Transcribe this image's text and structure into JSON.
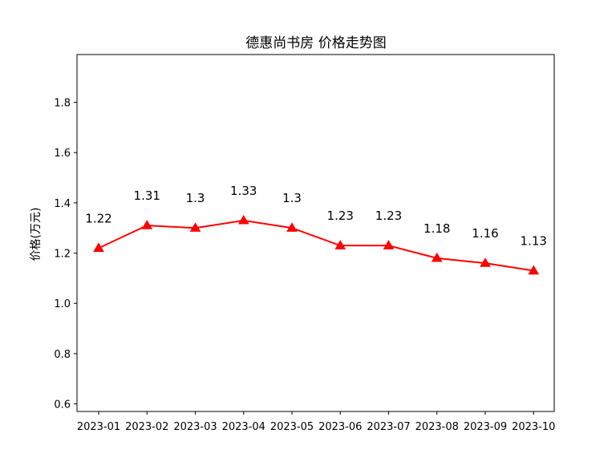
{
  "chart_data": {
    "type": "line",
    "title": "德惠尚书房 价格走势图",
    "xlabel": "",
    "ylabel": "价格(万元)",
    "categories": [
      "2023-01",
      "2023-02",
      "2023-03",
      "2023-04",
      "2023-05",
      "2023-06",
      "2023-07",
      "2023-08",
      "2023-09",
      "2023-10"
    ],
    "series": [
      {
        "values": [
          1.22,
          1.31,
          1.3,
          1.33,
          1.3,
          1.23,
          1.23,
          1.18,
          1.16,
          1.13
        ],
        "labels": [
          "1.22",
          "1.31",
          "1.3",
          "1.33",
          "1.3",
          "1.23",
          "1.23",
          "1.18",
          "1.16",
          "1.13"
        ],
        "color": "#ff0000",
        "marker": "triangle-up"
      }
    ],
    "ylim": [
      0.57,
      1.99
    ],
    "yticks": [
      0.6,
      0.8,
      1.0,
      1.2,
      1.4,
      1.6,
      1.8
    ],
    "ytick_labels": [
      "0.6",
      "0.8",
      "1.0",
      "1.2",
      "1.4",
      "1.6",
      "1.8"
    ],
    "grid": false,
    "legend": "none"
  }
}
